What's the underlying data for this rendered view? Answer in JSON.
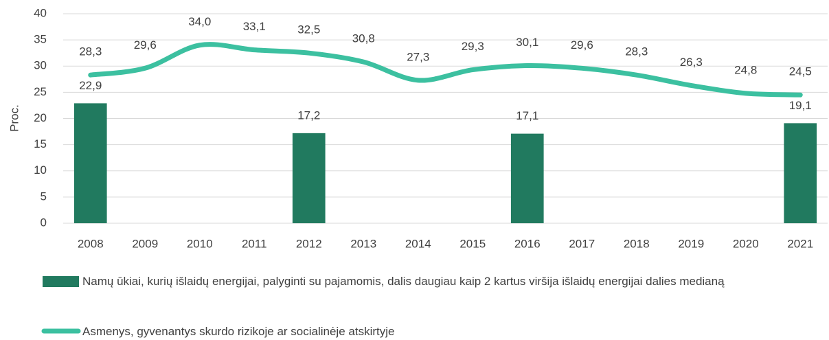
{
  "chart_data": {
    "type": "combo",
    "y_label": "Proc.",
    "categories": [
      "2008",
      "2009",
      "2010",
      "2011",
      "2012",
      "2013",
      "2014",
      "2015",
      "2016",
      "2017",
      "2018",
      "2019",
      "2020",
      "2021"
    ],
    "ylim": [
      0,
      40
    ],
    "yticks": [
      0,
      5,
      10,
      15,
      20,
      25,
      30,
      35,
      40
    ],
    "grid": true,
    "series": [
      {
        "name": "Namų ūkiai, kurių išlaidų energijai, palyginti su pajamomis, dalis daugiau kaip 2 kartus viršija išlaidų energijai dalies medianą",
        "type": "bar",
        "color": "#217a5f",
        "values": [
          22.9,
          null,
          null,
          null,
          17.2,
          null,
          null,
          null,
          17.1,
          null,
          null,
          null,
          null,
          19.1
        ],
        "value_labels": [
          "22,9",
          null,
          null,
          null,
          "17,2",
          null,
          null,
          null,
          "17,1",
          null,
          null,
          null,
          null,
          "19,1"
        ]
      },
      {
        "name": "Asmenys, gyvenantys skurdo rizikoje ar socialinėje atskirtyje",
        "type": "line",
        "color": "#3cc0a0",
        "values": [
          28.3,
          29.6,
          34.0,
          33.1,
          32.5,
          30.8,
          27.3,
          29.3,
          30.1,
          29.6,
          28.3,
          26.3,
          24.8,
          24.5
        ],
        "value_labels": [
          "28,3",
          "29,6",
          "34,0",
          "33,1",
          "32,5",
          "30,8",
          "27,3",
          "29,3",
          "30,1",
          "29,6",
          "28,3",
          "26,3",
          "24,8",
          "24,5"
        ]
      }
    ]
  }
}
